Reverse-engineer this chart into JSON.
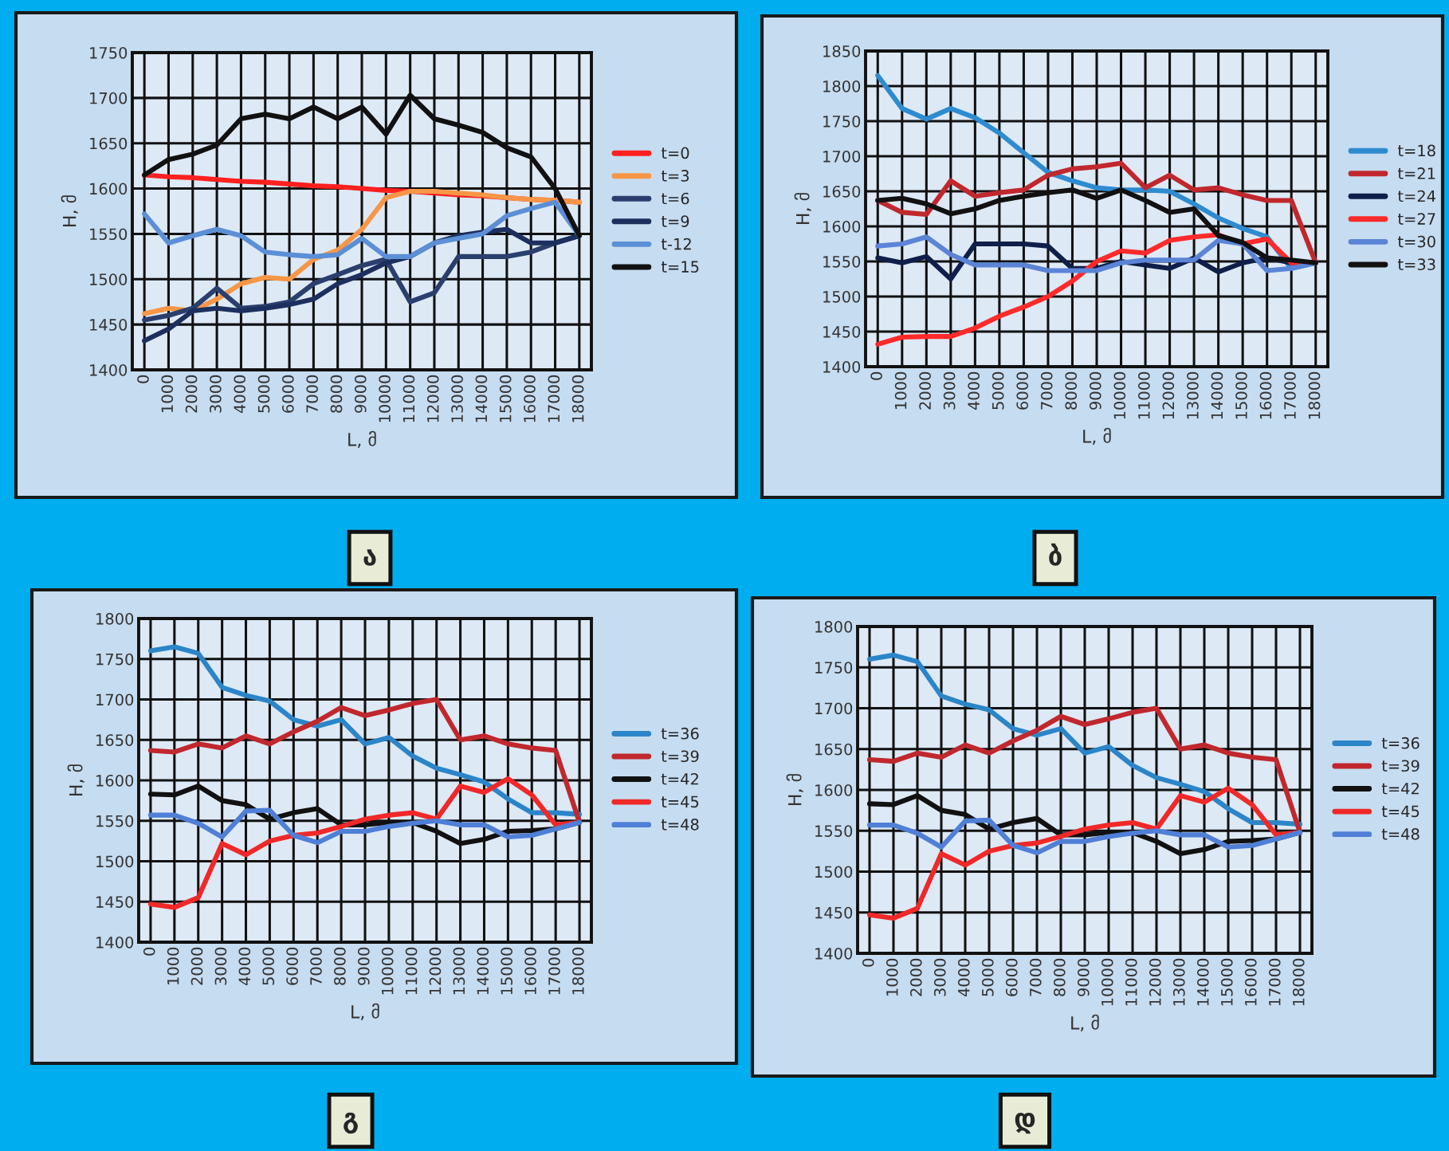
{
  "chart_data": [
    {
      "type": "line",
      "title": "ა",
      "xlabel": "L, მ",
      "ylabel": "H, მ",
      "categories": [
        "0",
        "1000",
        "2000",
        "3000",
        "4000",
        "5000",
        "6000",
        "7000",
        "8000",
        "9000",
        "10000",
        "11000",
        "12000",
        "13000",
        "14000",
        "15000",
        "16000",
        "17000",
        "18000"
      ],
      "ylim": [
        1400,
        1750
      ],
      "yticks": [
        1400,
        1450,
        1500,
        1550,
        1600,
        1650,
        1700,
        1750
      ],
      "grid": true,
      "legend": "right",
      "series": [
        {
          "name": "t=0",
          "color": "#ff2020",
          "values": [
            1615,
            1613,
            1612,
            1610,
            1608,
            1607,
            1605,
            1603,
            1602,
            1600,
            1598,
            1597,
            1595,
            1593,
            1592,
            1590,
            1588,
            1587,
            1585
          ]
        },
        {
          "name": "t=3",
          "color": "#f79646",
          "values": [
            1462,
            1468,
            1465,
            1478,
            1495,
            1502,
            1500,
            1522,
            1532,
            1555,
            1590,
            1597,
            1597,
            1595,
            1593,
            1590,
            1588,
            1587,
            1585
          ]
        },
        {
          "name": "t=6",
          "color": "#2a3f6e",
          "values": [
            1455,
            1460,
            1468,
            1490,
            1468,
            1470,
            1475,
            1495,
            1505,
            1515,
            1522,
            1475,
            1485,
            1525,
            1525,
            1525,
            1530,
            1540,
            1548
          ]
        },
        {
          "name": "t=9",
          "color": "#1c2f5e",
          "values": [
            1432,
            1445,
            1465,
            1468,
            1465,
            1468,
            1472,
            1478,
            1495,
            1505,
            1518,
            1525,
            1540,
            1548,
            1552,
            1555,
            1540,
            1540,
            1548
          ]
        },
        {
          "name": "t-12",
          "color": "#5b8fd6",
          "values": [
            1572,
            1540,
            1548,
            1555,
            1548,
            1530,
            1527,
            1525,
            1527,
            1545,
            1525,
            1525,
            1540,
            1545,
            1550,
            1570,
            1578,
            1585,
            1548
          ]
        },
        {
          "name": "t=15",
          "color": "#111111",
          "values": [
            1615,
            1632,
            1638,
            1648,
            1677,
            1682,
            1677,
            1690,
            1677,
            1690,
            1660,
            1703,
            1677,
            1670,
            1662,
            1645,
            1635,
            1600,
            1548
          ]
        }
      ]
    },
    {
      "type": "line",
      "title": "ბ",
      "xlabel": "L, მ",
      "ylabel": "H, მ",
      "categories": [
        "0",
        "1000",
        "2000",
        "3000",
        "4000",
        "5000",
        "6000",
        "7000",
        "8000",
        "9000",
        "10000",
        "11000",
        "12000",
        "13000",
        "14000",
        "15000",
        "16000",
        "17000",
        "18000"
      ],
      "ylim": [
        1400,
        1850
      ],
      "yticks": [
        1400,
        1450,
        1500,
        1550,
        1600,
        1650,
        1700,
        1750,
        1800,
        1850
      ],
      "grid": true,
      "legend": "right",
      "series": [
        {
          "name": "t=18",
          "color": "#2e8bd0",
          "values": [
            1815,
            1768,
            1753,
            1768,
            1755,
            1733,
            1705,
            1677,
            1665,
            1655,
            1652,
            1652,
            1650,
            1632,
            1612,
            1597,
            1585,
            1540,
            1548
          ]
        },
        {
          "name": "t=21",
          "color": "#c0282d",
          "values": [
            1637,
            1620,
            1617,
            1665,
            1643,
            1648,
            1652,
            1673,
            1682,
            1685,
            1690,
            1655,
            1673,
            1652,
            1655,
            1645,
            1637,
            1637,
            1548
          ]
        },
        {
          "name": "t=24",
          "color": "#0f1f4a",
          "values": [
            1555,
            1548,
            1557,
            1525,
            1575,
            1575,
            1575,
            1572,
            1540,
            1540,
            1550,
            1545,
            1540,
            1555,
            1535,
            1548,
            1555,
            1548,
            1548
          ]
        },
        {
          "name": "t=27",
          "color": "#ff2a2a",
          "values": [
            1432,
            1442,
            1443,
            1443,
            1455,
            1472,
            1485,
            1500,
            1522,
            1550,
            1565,
            1562,
            1580,
            1585,
            1588,
            1575,
            1582,
            1548,
            1548
          ]
        },
        {
          "name": "t=30",
          "color": "#5b84d6",
          "values": [
            1572,
            1575,
            1585,
            1560,
            1545,
            1545,
            1545,
            1537,
            1537,
            1537,
            1548,
            1552,
            1552,
            1552,
            1580,
            1575,
            1537,
            1540,
            1548
          ]
        },
        {
          "name": "t=33",
          "color": "#111111",
          "values": [
            1637,
            1640,
            1632,
            1618,
            1625,
            1637,
            1643,
            1648,
            1652,
            1640,
            1652,
            1637,
            1620,
            1625,
            1587,
            1577,
            1555,
            1552,
            1548
          ]
        }
      ]
    },
    {
      "type": "line",
      "title": "გ",
      "xlabel": "L, მ",
      "ylabel": "H, მ",
      "categories": [
        "0",
        "1000",
        "2000",
        "3000",
        "4000",
        "5000",
        "6000",
        "7000",
        "8000",
        "9000",
        "10000",
        "11000",
        "12000",
        "13000",
        "14000",
        "15000",
        "16000",
        "17000",
        "18000"
      ],
      "ylim": [
        1400,
        1800
      ],
      "yticks": [
        1400,
        1450,
        1500,
        1550,
        1600,
        1650,
        1700,
        1750,
        1800
      ],
      "grid": true,
      "legend": "right",
      "series": [
        {
          "name": "t=36",
          "color": "#2b85c8",
          "values": [
            1760,
            1765,
            1757,
            1715,
            1705,
            1698,
            1675,
            1667,
            1675,
            1645,
            1653,
            1630,
            1615,
            1607,
            1598,
            1577,
            1560,
            1560,
            1558
          ]
        },
        {
          "name": "t=39",
          "color": "#c0282d",
          "values": [
            1637,
            1635,
            1645,
            1640,
            1655,
            1645,
            1660,
            1673,
            1690,
            1680,
            1687,
            1695,
            1700,
            1650,
            1655,
            1645,
            1640,
            1637,
            1548
          ]
        },
        {
          "name": "t=42",
          "color": "#111111",
          "values": [
            1583,
            1582,
            1593,
            1575,
            1570,
            1552,
            1560,
            1565,
            1545,
            1545,
            1548,
            1548,
            1537,
            1522,
            1527,
            1537,
            1538,
            1540,
            1548
          ]
        },
        {
          "name": "t=45",
          "color": "#f02828",
          "values": [
            1447,
            1443,
            1455,
            1522,
            1508,
            1525,
            1532,
            1535,
            1543,
            1552,
            1557,
            1560,
            1552,
            1593,
            1585,
            1602,
            1582,
            1545,
            1548
          ]
        },
        {
          "name": "t=48",
          "color": "#4f7fd6",
          "values": [
            1557,
            1557,
            1547,
            1530,
            1562,
            1563,
            1532,
            1523,
            1537,
            1537,
            1543,
            1547,
            1550,
            1545,
            1545,
            1530,
            1532,
            1540,
            1548
          ]
        }
      ]
    },
    {
      "type": "line",
      "title": "დ",
      "xlabel": "L, მ",
      "ylabel": "H, მ",
      "categories": [
        "0",
        "1000",
        "2000",
        "3000",
        "4000",
        "5000",
        "6000",
        "7000",
        "8000",
        "9000",
        "10000",
        "11000",
        "12000",
        "13000",
        "14000",
        "15000",
        "16000",
        "17000",
        "18000"
      ],
      "ylim": [
        1400,
        1800
      ],
      "yticks": [
        1400,
        1450,
        1500,
        1550,
        1600,
        1650,
        1700,
        1750,
        1800
      ],
      "grid": true,
      "legend": "right",
      "series": [
        {
          "name": "t=36",
          "color": "#2b85c8",
          "values": [
            1760,
            1765,
            1757,
            1715,
            1705,
            1698,
            1675,
            1667,
            1675,
            1645,
            1653,
            1630,
            1615,
            1607,
            1598,
            1577,
            1560,
            1560,
            1558
          ]
        },
        {
          "name": "t=39",
          "color": "#c0282d",
          "values": [
            1637,
            1635,
            1645,
            1640,
            1655,
            1645,
            1660,
            1673,
            1690,
            1680,
            1687,
            1695,
            1700,
            1650,
            1655,
            1645,
            1640,
            1637,
            1548
          ]
        },
        {
          "name": "t=42",
          "color": "#111111",
          "values": [
            1583,
            1582,
            1593,
            1575,
            1570,
            1552,
            1560,
            1565,
            1545,
            1545,
            1548,
            1548,
            1537,
            1522,
            1527,
            1537,
            1538,
            1540,
            1548
          ]
        },
        {
          "name": "t=45",
          "color": "#f02828",
          "values": [
            1447,
            1443,
            1455,
            1522,
            1508,
            1525,
            1532,
            1535,
            1543,
            1552,
            1557,
            1560,
            1552,
            1593,
            1585,
            1602,
            1582,
            1545,
            1548
          ]
        },
        {
          "name": "t=48",
          "color": "#4f7fd6",
          "values": [
            1557,
            1557,
            1547,
            1530,
            1562,
            1563,
            1532,
            1523,
            1537,
            1537,
            1543,
            1547,
            1550,
            1545,
            1545,
            1530,
            1532,
            1540,
            1548
          ]
        }
      ]
    }
  ]
}
